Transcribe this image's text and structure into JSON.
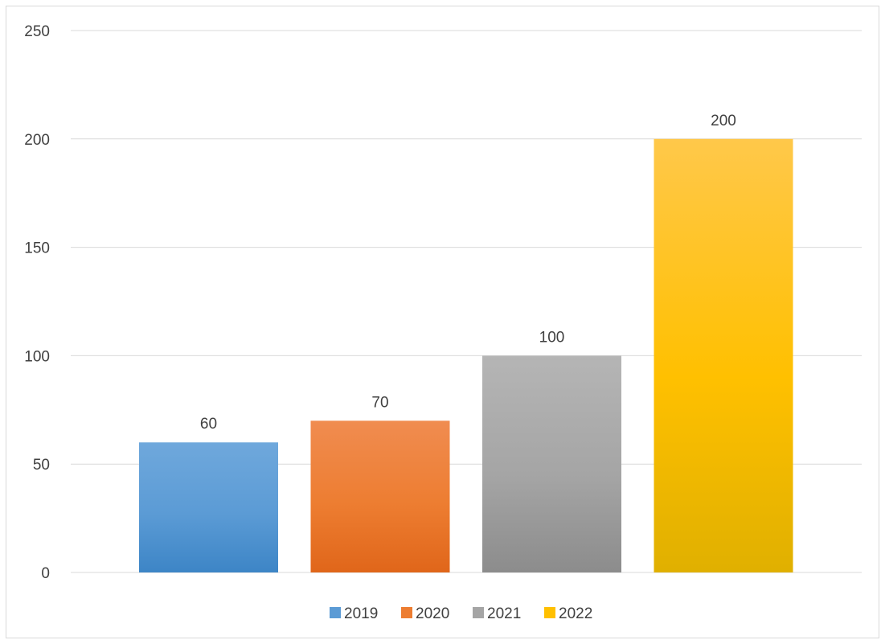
{
  "chart_data": {
    "type": "bar",
    "title": "",
    "xlabel": "",
    "ylabel": "",
    "ylim": [
      0,
      250
    ],
    "yticks": [
      0,
      50,
      100,
      150,
      200,
      250
    ],
    "grid": true,
    "legend_position": "bottom",
    "series": [
      {
        "name": "2019",
        "value": 60,
        "color": "#5B9BD5",
        "color_light": "#6FA8DC",
        "color_dark": "#3D85C6"
      },
      {
        "name": "2020",
        "value": 70,
        "color": "#ED7D31",
        "color_light": "#F08C50",
        "color_dark": "#E0661A"
      },
      {
        "name": "2021",
        "value": 100,
        "color": "#A5A5A5",
        "color_light": "#B5B5B5",
        "color_dark": "#8C8C8C"
      },
      {
        "name": "2022",
        "value": 200,
        "color": "#FFC000",
        "color_light": "#FFC84A",
        "color_dark": "#E0B000"
      }
    ]
  }
}
